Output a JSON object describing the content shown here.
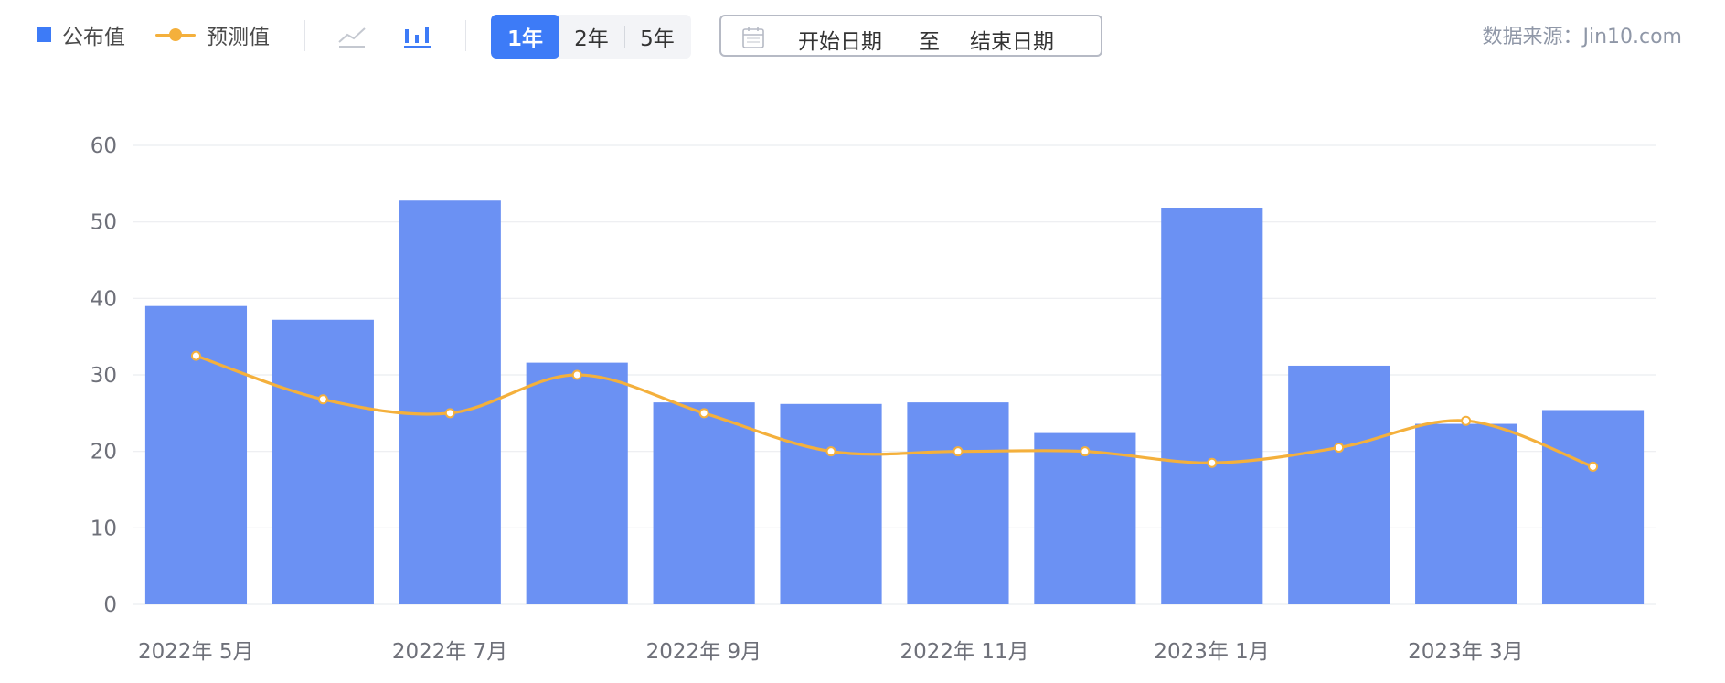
{
  "legend": {
    "published_label": "公布值",
    "forecast_label": "预测值"
  },
  "chart_type_buttons": {
    "line_icon": "line-chart-icon",
    "bar_icon": "bar-chart-icon"
  },
  "range_tabs": [
    {
      "label": "1年",
      "active": true
    },
    {
      "label": "2年",
      "active": false
    },
    {
      "label": "5年",
      "active": false
    }
  ],
  "date_range": {
    "calendar_icon": "calendar-icon",
    "start_placeholder": "开始日期",
    "separator": "至",
    "end_placeholder": "结束日期"
  },
  "source_text": "数据来源：Jin10.com",
  "colors": {
    "bar": "#6b91f3",
    "legend_square": "#3d7bf7",
    "line": "#f4b03c",
    "active_tab": "#3d7bf7",
    "grid": "#ebedf0",
    "axis_text": "#6e7079"
  },
  "chart_data": {
    "type": "bar",
    "categories": [
      "2022-05",
      "2022-06",
      "2022-07",
      "2022-08",
      "2022-09",
      "2022-10",
      "2022-11",
      "2022-12",
      "2023-01",
      "2023-02",
      "2023-03",
      "2023-04"
    ],
    "x_tick_labels": [
      {
        "index": 0,
        "label": "2022年 5月"
      },
      {
        "index": 2,
        "label": "2022年 7月"
      },
      {
        "index": 4,
        "label": "2022年 9月"
      },
      {
        "index": 6,
        "label": "2022年 11月"
      },
      {
        "index": 8,
        "label": "2023年 1月"
      },
      {
        "index": 10,
        "label": "2023年 3月"
      }
    ],
    "y_ticks": [
      "0",
      "10",
      "20",
      "30",
      "40",
      "50",
      "60"
    ],
    "ylim": [
      0,
      60
    ],
    "grid": true,
    "series": [
      {
        "name": "公布值",
        "type": "bar",
        "values": [
          39.0,
          37.2,
          52.8,
          31.6,
          26.4,
          26.2,
          26.4,
          22.4,
          51.8,
          31.2,
          23.6,
          25.4
        ]
      },
      {
        "name": "预测值",
        "type": "line",
        "smooth": true,
        "values": [
          32.5,
          26.8,
          25.0,
          30.0,
          25.0,
          20.0,
          20.0,
          20.0,
          18.5,
          20.5,
          24.0,
          18.0
        ]
      }
    ]
  }
}
